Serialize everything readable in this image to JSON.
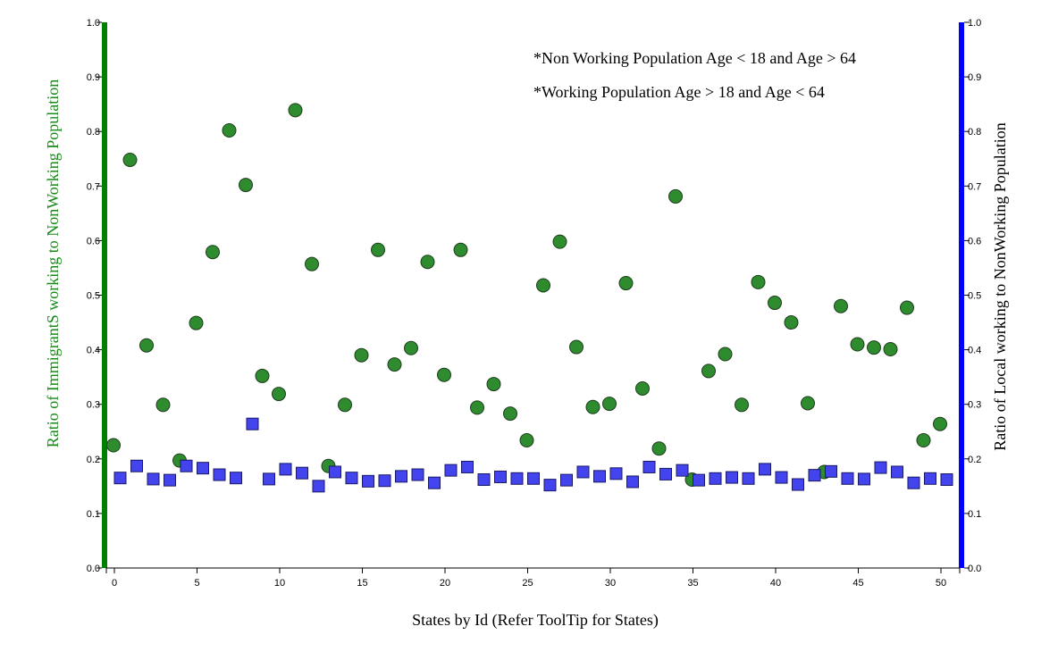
{
  "chart_data": {
    "type": "scatter",
    "x_label": "States by Id (Refer ToolTip for States)",
    "y_left_label": "Ratio of ImmigrantS working to NonWorking Population",
    "y_right_label": "Ratio of Local working to NonWorking Population",
    "notes": [
      "*Non Working Population Age < 18 and Age > 64",
      "*Working Population Age > 18 and Age < 64"
    ],
    "x_range": [
      0,
      50
    ],
    "x_ticks": [
      "0",
      "5",
      "10",
      "15",
      "20",
      "25",
      "30",
      "35",
      "40",
      "45",
      "50"
    ],
    "y_left_range": [
      0,
      1
    ],
    "y_right_range": [
      0,
      1
    ],
    "y_ticks": [
      "0.0",
      "0.1",
      "0.2",
      "0.3",
      "0.4",
      "0.5",
      "0.6",
      "0.7",
      "0.8",
      "0.9",
      "1.0"
    ],
    "colors": {
      "left_axis_bar": "#008000",
      "right_axis_bar": "#0000ff",
      "immigrant_marker": "#2e8b2e",
      "local_marker": "#4444ee"
    },
    "series": [
      {
        "marker": "circle",
        "axis": "left",
        "values": [
          0.225,
          0.748,
          0.408,
          0.299,
          0.197,
          0.449,
          0.579,
          0.802,
          0.702,
          0.352,
          0.319,
          0.839,
          0.557,
          0.187,
          0.299,
          0.39,
          0.583,
          0.373,
          0.403,
          0.561,
          0.354,
          0.583,
          0.294,
          0.337,
          0.283,
          0.234,
          0.518,
          0.598,
          0.405,
          0.295,
          0.301,
          0.522,
          0.329,
          0.219,
          0.681,
          0.162,
          0.361,
          0.392,
          0.299,
          0.524,
          0.486,
          0.45,
          0.302,
          0.176,
          0.48,
          0.41,
          0.404,
          0.401,
          0.477,
          0.234,
          0.264
        ]
      },
      {
        "marker": "square",
        "axis": "right",
        "values": [
          0.165,
          0.187,
          0.163,
          0.161,
          0.187,
          0.183,
          0.171,
          0.165,
          0.264,
          0.163,
          0.181,
          0.174,
          0.15,
          0.176,
          0.165,
          0.159,
          0.16,
          0.168,
          0.171,
          0.156,
          0.179,
          0.185,
          0.162,
          0.167,
          0.164,
          0.164,
          0.152,
          0.161,
          0.176,
          0.168,
          0.173,
          0.158,
          0.185,
          0.172,
          0.179,
          0.161,
          0.164,
          0.166,
          0.164,
          0.181,
          0.166,
          0.153,
          0.17,
          0.177,
          0.164,
          0.163,
          0.184,
          0.176,
          0.156,
          0.164,
          0.162
        ]
      }
    ]
  }
}
